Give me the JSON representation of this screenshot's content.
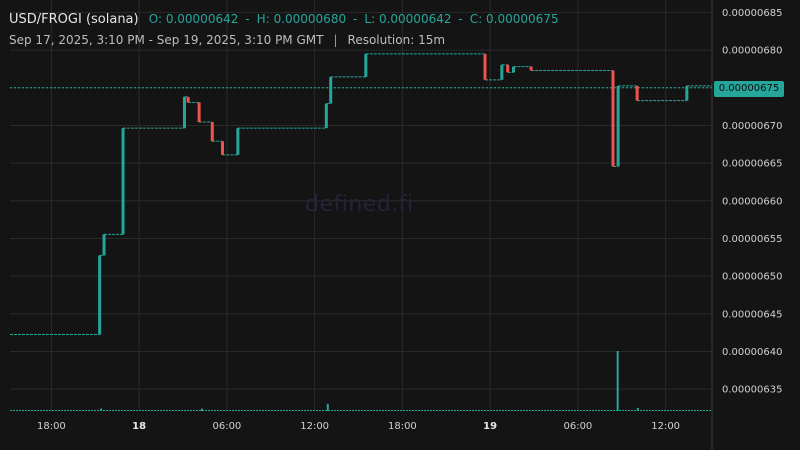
{
  "header": {
    "title": "USD/FROGI (solana)",
    "ohlc": [
      {
        "label": "O",
        "value": "0.00000642"
      },
      {
        "label": "H",
        "value": "0.00000680"
      },
      {
        "label": "L",
        "value": "0.00000642"
      },
      {
        "label": "C",
        "value": "0.00000675"
      }
    ],
    "date_range": "Sep 17, 2025, 3:10 PM - Sep 19, 2025, 3:10 PM GMT",
    "separator": "|",
    "resolution": "Resolution: 15m"
  },
  "watermark": "defined.fi",
  "colors": {
    "background": "#141414",
    "grid": "#2a2a2a",
    "up": "#26a69a",
    "down": "#ef5350"
  },
  "chart_data": {
    "type": "candlestick-step",
    "y_ticks": [
      "0.00000685",
      "0.00000680",
      "0.00000675",
      "0.00000670",
      "0.00000665",
      "0.00000660",
      "0.00000655",
      "0.00000650",
      "0.00000645",
      "0.00000640",
      "0.00000635"
    ],
    "ylim": [
      6.321e-06,
      6.8665e-06
    ],
    "x_ticks": [
      {
        "label": "18:00",
        "hour": 18,
        "bold": false
      },
      {
        "label": "18",
        "hour": 24,
        "bold": true
      },
      {
        "label": "06:00",
        "hour": 30,
        "bold": false
      },
      {
        "label": "12:00",
        "hour": 36,
        "bold": false
      },
      {
        "label": "18:00",
        "hour": 42,
        "bold": false
      },
      {
        "label": "19",
        "hour": 48,
        "bold": true
      },
      {
        "label": "06:00",
        "hour": 54,
        "bold": false
      },
      {
        "label": "12:00",
        "hour": 60,
        "bold": false
      }
    ],
    "xlim_hours": [
      15.17,
      63.17
    ],
    "last_price": "0.00000675",
    "last_price_value": 6.75e-06,
    "price_steps": [
      {
        "hour": 15.17,
        "price": 6.4225e-06
      },
      {
        "hour": 21.3,
        "price": 6.5275e-06
      },
      {
        "hour": 21.6,
        "price": 6.5555e-06
      },
      {
        "hour": 22.9,
        "price": 6.6965e-06
      },
      {
        "hour": 27.1,
        "price": 6.738e-06
      },
      {
        "hour": 27.35,
        "price": 6.7305e-06
      },
      {
        "hour": 28.1,
        "price": 6.7045e-06
      },
      {
        "hour": 29.0,
        "price": 6.679e-06
      },
      {
        "hour": 29.7,
        "price": 6.661e-06
      },
      {
        "hour": 30.75,
        "price": 6.6965e-06
      },
      {
        "hour": 36.8,
        "price": 6.729e-06
      },
      {
        "hour": 37.1,
        "price": 6.7645e-06
      },
      {
        "hour": 39.5,
        "price": 6.795e-06
      },
      {
        "hour": 47.65,
        "price": 6.7605e-06
      },
      {
        "hour": 48.8,
        "price": 6.7805e-06
      },
      {
        "hour": 49.2,
        "price": 6.7705e-06
      },
      {
        "hour": 49.6,
        "price": 6.778e-06
      },
      {
        "hour": 50.8,
        "price": 6.773e-06
      },
      {
        "hour": 56.4,
        "price": 6.6455e-06
      },
      {
        "hour": 56.75,
        "price": 6.7525e-06
      },
      {
        "hour": 58.05,
        "price": 6.733e-06
      },
      {
        "hour": 61.45,
        "price": 6.7525e-06
      }
    ],
    "volume_spikes": [
      {
        "hour": 56.72,
        "ratio": 1.0
      },
      {
        "hour": 36.9,
        "ratio": 0.12
      },
      {
        "hour": 58.1,
        "ratio": 0.05
      },
      {
        "hour": 21.4,
        "ratio": 0.04
      },
      {
        "hour": 28.3,
        "ratio": 0.04
      }
    ]
  }
}
